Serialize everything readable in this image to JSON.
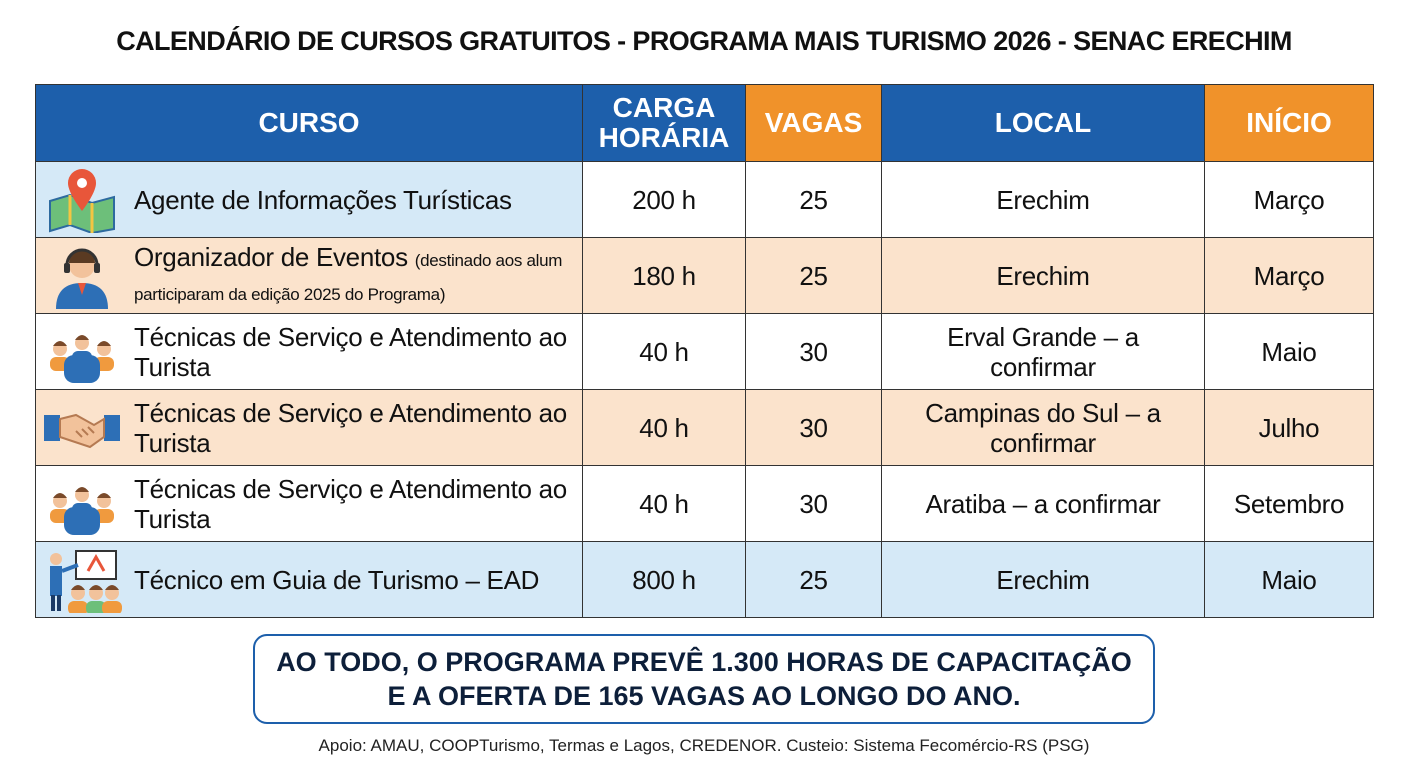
{
  "title": "CALENDÁRIO DE CURSOS GRATUITOS - PROGRAMA MAIS TURISMO 2026 - SENAC ERECHIM",
  "table": {
    "header": [
      "CURSO",
      "CARGA HORÁRIA",
      "VAGAS",
      "LOCAL",
      "INÍCIO"
    ],
    "rows": [
      {
        "course": "Agente de Informações Turísticas",
        "hours": "200 h",
        "seats": 25,
        "local": "Erechim",
        "start": "Março"
      },
      {
        "course": "Organizador de Eventos",
        "note": "(destinado aos alum participaram da edição 2025 do Programa)",
        "hours": "180 h",
        "seats": 25,
        "local": "Erechim",
        "start": "Março"
      },
      {
        "course": "Técnicas de Serviço e Atendimento ao Turista",
        "hours": "40 h",
        "seats": 30,
        "local": "Erval Grande – a confirmar",
        "start": "Maio"
      },
      {
        "course": "Técnicas de Serviço e Atendimento ao Turista",
        "hours": "40 h",
        "seats": 30,
        "local": "Campinas do Sul – a confirmar",
        "start": "Julho"
      },
      {
        "course": "Técnicas de Serviço e Atendimento ao Turista",
        "hours": "40 h",
        "seats": 30,
        "local": "Aratiba – a confirmar",
        "start": "Setembro"
      },
      {
        "course": "Técnico em Guia de Turismo – EAD",
        "hours": "800 h",
        "seats": 25,
        "local": "Erechim",
        "start": "Maio"
      }
    ]
  },
  "summary": [
    "AO TODO, O PROGRAMA PREVÊ 1.300 HORAS DE CAPACITAÇÃO",
    "E A OFERTA DE 165 VAGAS AO LONGO DO ANO."
  ],
  "footer": "Apoio: AMAU, COOPTurismo, Termas e Lagos, CREDENOR. Custeio: Sistema Fecomércio-RS (PSG)"
}
